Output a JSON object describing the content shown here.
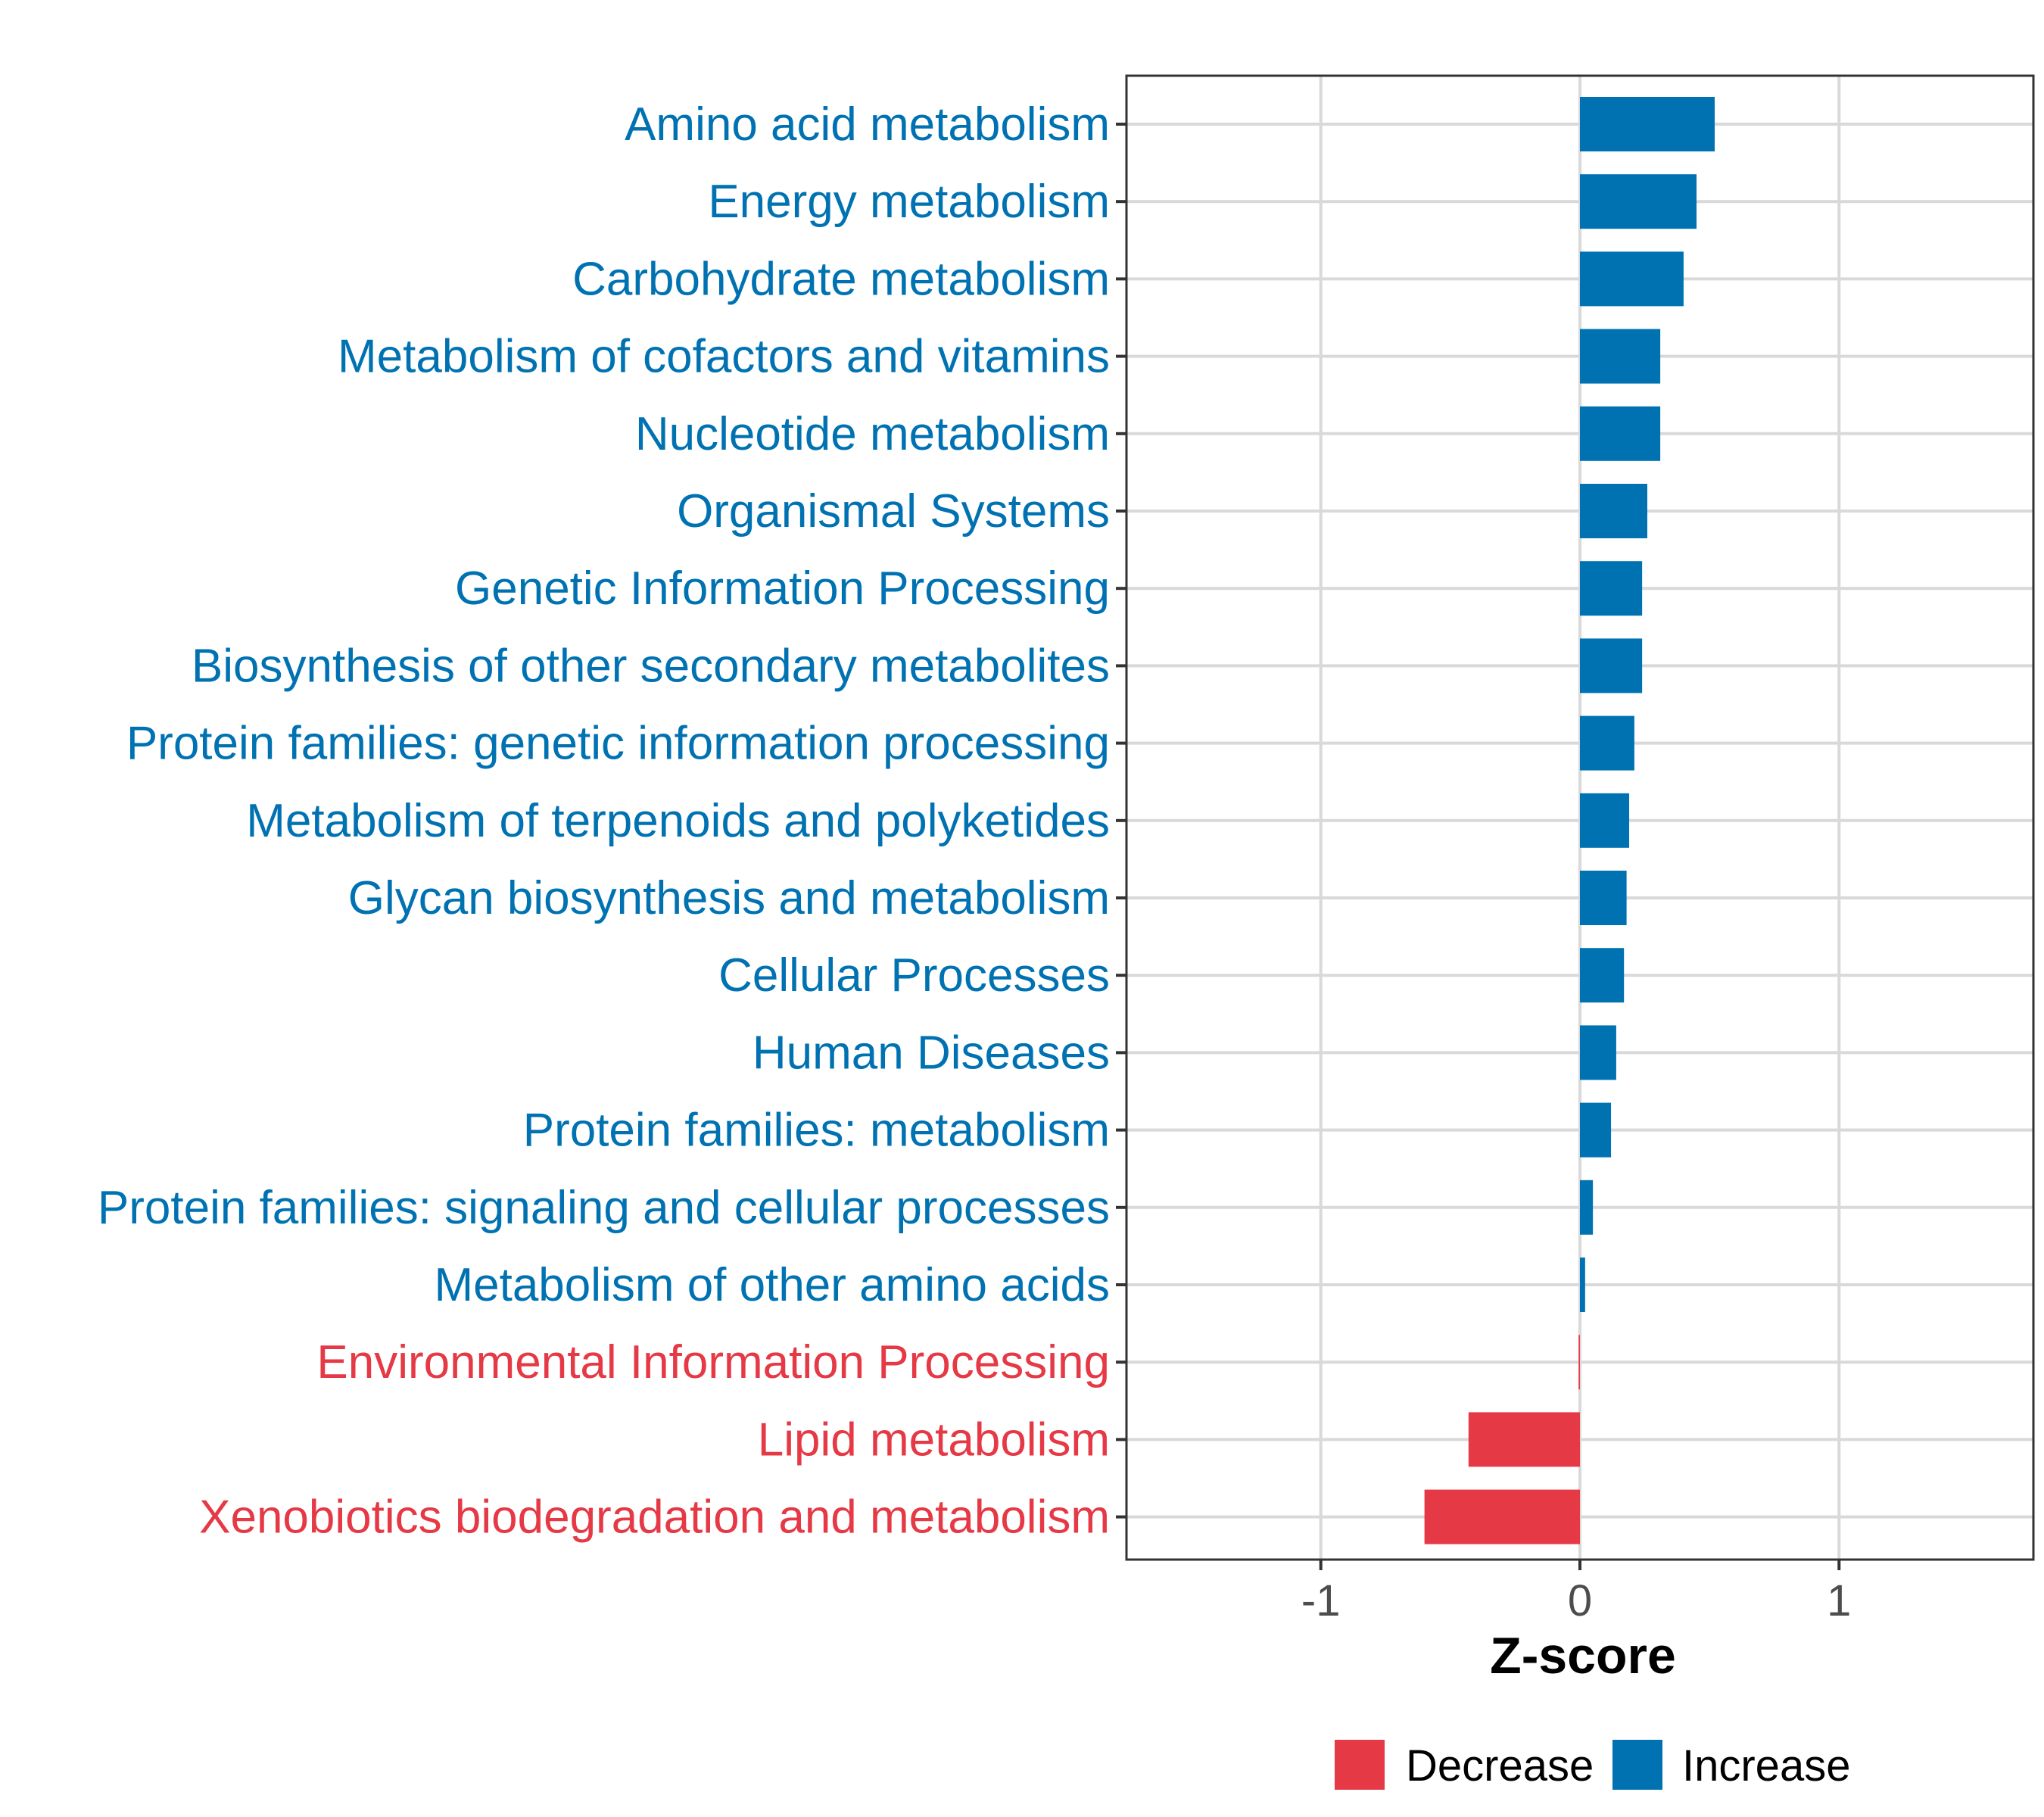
{
  "chart_data": {
    "type": "bar",
    "orientation": "horizontal",
    "categories": [
      "Amino acid metabolism",
      "Energy metabolism",
      "Carbohydrate metabolism",
      "Metabolism of cofactors and vitamins",
      "Nucleotide metabolism",
      "Organismal Systems",
      "Genetic Information Processing",
      "Biosynthesis of other secondary metabolites",
      "Protein families: genetic information processing",
      "Metabolism of terpenoids and polyketides",
      "Glycan biosynthesis and metabolism",
      "Cellular Processes",
      "Human Diseases",
      "Protein families: metabolism",
      "Protein families: signaling and cellular processes",
      "Metabolism of other amino acids",
      "Environmental Information Processing",
      "Lipid metabolism",
      "Xenobiotics biodegradation and metabolism"
    ],
    "values": [
      0.52,
      0.45,
      0.4,
      0.31,
      0.31,
      0.26,
      0.24,
      0.24,
      0.21,
      0.19,
      0.18,
      0.17,
      0.14,
      0.12,
      0.05,
      0.02,
      -0.005,
      -0.43,
      -0.6
    ],
    "groups": [
      "Increase",
      "Increase",
      "Increase",
      "Increase",
      "Increase",
      "Increase",
      "Increase",
      "Increase",
      "Increase",
      "Increase",
      "Increase",
      "Increase",
      "Increase",
      "Increase",
      "Increase",
      "Increase",
      "Decrease",
      "Decrease",
      "Decrease"
    ],
    "xlabel": "Z-score",
    "ylabel": "",
    "xlim": [
      -1.75,
      1.75
    ],
    "xticks": [
      -1,
      0,
      1
    ],
    "xtick_labels": [
      "-1",
      "0",
      "1"
    ],
    "grid": true,
    "legend": {
      "position": "bottom",
      "items": [
        {
          "label": "Decrease",
          "color": "#e63946"
        },
        {
          "label": "Increase",
          "color": "#0072b2"
        }
      ]
    },
    "colors": {
      "Decrease": "#e63946",
      "Increase": "#0072b2"
    }
  }
}
